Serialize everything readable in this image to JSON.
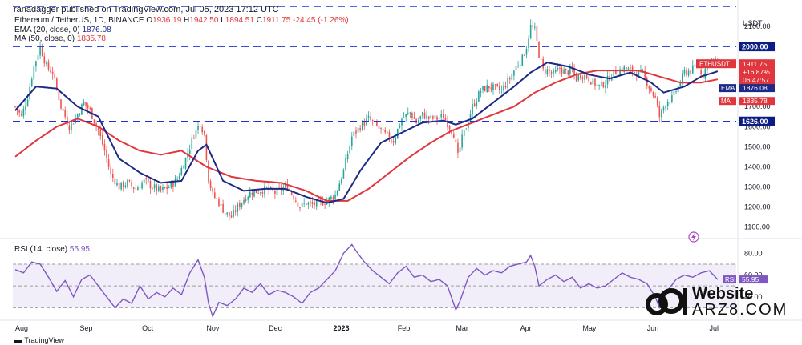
{
  "header": {
    "published": "ranadagger published on TradingView.com, Jul 05, 2023 17:12 UTC",
    "symbol": "Ethereum / TetherUS, 1D, BINANCE",
    "ohlc": {
      "o_label": "O",
      "o": "1936.19",
      "h_label": "H",
      "h": "1942.50",
      "l_label": "L",
      "l": "1894.51",
      "c_label": "C",
      "c": "1911.75",
      "change": "-24.45 (-1.26%)"
    },
    "ema_label": "EMA (20, close, 0)",
    "ema_value": "1876.08",
    "ma_label": "MA (50, close, 0)",
    "ma_value": "1835.78",
    "rsi_label": "RSI (14, close)",
    "rsi_value": "55.95"
  },
  "footer": {
    "brand": "TradingView"
  },
  "watermark": {
    "site": "Website",
    "url": "ARZ8.COM"
  },
  "colors": {
    "up": "#26a69a",
    "down": "#ef5350",
    "ema": "#1c2a85",
    "ma": "#e0373e",
    "level": "#1e32d6",
    "rsi": "#7e57c2",
    "rsi_band": "#ede7f6",
    "price_tag": "#e0373e"
  },
  "chart_data": [
    {
      "type": "candlestick",
      "title": "Ethereum / TetherUS, 1D, BINANCE",
      "y_unit": "USDT",
      "ylim": [
        1050,
        2200
      ],
      "y_ticks": [
        1100,
        1200,
        1300,
        1400,
        1500,
        1600,
        1700,
        1800,
        1900,
        2000,
        2100
      ],
      "y_tick_labels": [
        "1100.00",
        "1200.00",
        "1300.00",
        "1400.00",
        "1500.00",
        "1600.00",
        "1700.00",
        "1800.00",
        "1900.00",
        "2000.00",
        "2100.00"
      ],
      "x_tick_labels": [
        "Aug",
        "Sep",
        "Oct",
        "Nov",
        "Dec",
        "2023",
        "Feb",
        "Mar",
        "Apr",
        "May",
        "Jun",
        "Jul"
      ],
      "x_tick_days": [
        0,
        31,
        61,
        92,
        122,
        153,
        184,
        212,
        243,
        273,
        304,
        334
      ],
      "horizontal_levels": [
        {
          "value": 2200,
          "label": ""
        },
        {
          "value": 2000,
          "label": "2000.00"
        },
        {
          "value": 1626,
          "label": "1626.00"
        }
      ],
      "price_tags": [
        {
          "value": 1911.75,
          "lines": [
            "ETHUSDT",
            "1911.75",
            "+16.87%",
            "06:47:57"
          ]
        },
        {
          "value": 1876.08,
          "lines": [
            "EMA",
            "1876.08"
          ]
        },
        {
          "value": 1835.78,
          "lines": [
            "MA",
            "1835.78"
          ]
        }
      ],
      "close_anchors": [
        [
          0,
          1700
        ],
        [
          3,
          1650
        ],
        [
          6,
          1750
        ],
        [
          9,
          1900
        ],
        [
          12,
          2000
        ],
        [
          15,
          1900
        ],
        [
          18,
          1870
        ],
        [
          22,
          1700
        ],
        [
          26,
          1600
        ],
        [
          29,
          1640
        ],
        [
          33,
          1720
        ],
        [
          36,
          1680
        ],
        [
          40,
          1580
        ],
        [
          43,
          1480
        ],
        [
          46,
          1360
        ],
        [
          50,
          1300
        ],
        [
          54,
          1320
        ],
        [
          58,
          1290
        ],
        [
          62,
          1330
        ],
        [
          66,
          1300
        ],
        [
          70,
          1280
        ],
        [
          74,
          1300
        ],
        [
          78,
          1340
        ],
        [
          82,
          1440
        ],
        [
          86,
          1560
        ],
        [
          89,
          1620
        ],
        [
          91,
          1560
        ],
        [
          93,
          1340
        ],
        [
          95,
          1260
        ],
        [
          98,
          1220
        ],
        [
          101,
          1170
        ],
        [
          104,
          1150
        ],
        [
          107,
          1200
        ],
        [
          110,
          1240
        ],
        [
          113,
          1270
        ],
        [
          117,
          1280
        ],
        [
          121,
          1290
        ],
        [
          125,
          1270
        ],
        [
          128,
          1290
        ],
        [
          131,
          1300
        ],
        [
          134,
          1250
        ],
        [
          137,
          1200
        ],
        [
          140,
          1220
        ],
        [
          143,
          1210
        ],
        [
          146,
          1220
        ],
        [
          150,
          1230
        ],
        [
          154,
          1260
        ],
        [
          158,
          1380
        ],
        [
          162,
          1550
        ],
        [
          166,
          1600
        ],
        [
          170,
          1640
        ],
        [
          174,
          1600
        ],
        [
          178,
          1560
        ],
        [
          182,
          1530
        ],
        [
          186,
          1640
        ],
        [
          190,
          1670
        ],
        [
          193,
          1620
        ],
        [
          196,
          1660
        ],
        [
          199,
          1640
        ],
        [
          203,
          1640
        ],
        [
          206,
          1650
        ],
        [
          209,
          1600
        ],
        [
          211,
          1560
        ],
        [
          213,
          1450
        ],
        [
          215,
          1540
        ],
        [
          217,
          1600
        ],
        [
          220,
          1700
        ],
        [
          224,
          1780
        ],
        [
          228,
          1800
        ],
        [
          231,
          1790
        ],
        [
          234,
          1780
        ],
        [
          238,
          1840
        ],
        [
          241,
          1900
        ],
        [
          244,
          1940
        ],
        [
          246,
          2000
        ],
        [
          248,
          2100
        ],
        [
          250,
          2080
        ],
        [
          252,
          1960
        ],
        [
          254,
          1880
        ],
        [
          256,
          1880
        ],
        [
          259,
          1860
        ],
        [
          262,
          1890
        ],
        [
          265,
          1870
        ],
        [
          268,
          1880
        ],
        [
          270,
          1840
        ],
        [
          272,
          1860
        ],
        [
          275,
          1850
        ],
        [
          278,
          1820
        ],
        [
          281,
          1800
        ],
        [
          284,
          1820
        ],
        [
          287,
          1860
        ],
        [
          290,
          1880
        ],
        [
          293,
          1890
        ],
        [
          296,
          1880
        ],
        [
          299,
          1870
        ],
        [
          302,
          1860
        ],
        [
          305,
          1800
        ],
        [
          308,
          1740
        ],
        [
          310,
          1650
        ],
        [
          313,
          1720
        ],
        [
          316,
          1740
        ],
        [
          319,
          1800
        ],
        [
          322,
          1870
        ],
        [
          325,
          1880
        ],
        [
          328,
          1900
        ],
        [
          331,
          1860
        ],
        [
          334,
          1940
        ],
        [
          336,
          1930
        ],
        [
          338,
          1912
        ]
      ],
      "ema_anchors": [
        [
          0,
          1680
        ],
        [
          10,
          1800
        ],
        [
          20,
          1790
        ],
        [
          30,
          1700
        ],
        [
          40,
          1650
        ],
        [
          50,
          1440
        ],
        [
          60,
          1370
        ],
        [
          70,
          1320
        ],
        [
          80,
          1330
        ],
        [
          88,
          1480
        ],
        [
          92,
          1510
        ],
        [
          100,
          1330
        ],
        [
          110,
          1280
        ],
        [
          120,
          1290
        ],
        [
          130,
          1290
        ],
        [
          140,
          1250
        ],
        [
          150,
          1220
        ],
        [
          158,
          1240
        ],
        [
          166,
          1380
        ],
        [
          176,
          1520
        ],
        [
          186,
          1570
        ],
        [
          196,
          1620
        ],
        [
          206,
          1630
        ],
        [
          212,
          1610
        ],
        [
          220,
          1640
        ],
        [
          230,
          1720
        ],
        [
          240,
          1800
        ],
        [
          248,
          1870
        ],
        [
          256,
          1920
        ],
        [
          266,
          1900
        ],
        [
          276,
          1860
        ],
        [
          286,
          1840
        ],
        [
          296,
          1870
        ],
        [
          306,
          1820
        ],
        [
          312,
          1770
        ],
        [
          322,
          1800
        ],
        [
          330,
          1850
        ],
        [
          338,
          1876
        ]
      ],
      "ma_anchors": [
        [
          0,
          1450
        ],
        [
          10,
          1530
        ],
        [
          20,
          1600
        ],
        [
          30,
          1640
        ],
        [
          40,
          1600
        ],
        [
          50,
          1530
        ],
        [
          60,
          1480
        ],
        [
          70,
          1460
        ],
        [
          80,
          1480
        ],
        [
          92,
          1400
        ],
        [
          104,
          1350
        ],
        [
          116,
          1330
        ],
        [
          128,
          1320
        ],
        [
          140,
          1280
        ],
        [
          150,
          1230
        ],
        [
          160,
          1230
        ],
        [
          170,
          1290
        ],
        [
          180,
          1370
        ],
        [
          190,
          1450
        ],
        [
          200,
          1520
        ],
        [
          210,
          1580
        ],
        [
          220,
          1620
        ],
        [
          230,
          1660
        ],
        [
          240,
          1700
        ],
        [
          250,
          1770
        ],
        [
          260,
          1820
        ],
        [
          270,
          1860
        ],
        [
          280,
          1880
        ],
        [
          290,
          1880
        ],
        [
          300,
          1880
        ],
        [
          310,
          1850
        ],
        [
          320,
          1820
        ],
        [
          330,
          1820
        ],
        [
          338,
          1836
        ]
      ]
    },
    {
      "type": "line",
      "title": "RSI (14, close)",
      "ylim": [
        20,
        92
      ],
      "y_ticks": [
        40,
        60,
        80
      ],
      "y_tick_labels": [
        "40.00",
        "60.00",
        "80.00"
      ],
      "band": [
        30,
        70
      ],
      "midline": 50,
      "last_value": 55.95,
      "rsi_anchors": [
        [
          0,
          65
        ],
        [
          4,
          62
        ],
        [
          8,
          72
        ],
        [
          12,
          70
        ],
        [
          16,
          58
        ],
        [
          20,
          45
        ],
        [
          24,
          55
        ],
        [
          28,
          40
        ],
        [
          32,
          56
        ],
        [
          36,
          60
        ],
        [
          40,
          50
        ],
        [
          44,
          40
        ],
        [
          48,
          30
        ],
        [
          52,
          38
        ],
        [
          56,
          34
        ],
        [
          60,
          50
        ],
        [
          64,
          38
        ],
        [
          68,
          44
        ],
        [
          72,
          40
        ],
        [
          76,
          48
        ],
        [
          80,
          42
        ],
        [
          84,
          62
        ],
        [
          88,
          74
        ],
        [
          91,
          58
        ],
        [
          93,
          34
        ],
        [
          95,
          22
        ],
        [
          98,
          35
        ],
        [
          102,
          32
        ],
        [
          106,
          38
        ],
        [
          110,
          48
        ],
        [
          114,
          44
        ],
        [
          118,
          52
        ],
        [
          122,
          42
        ],
        [
          126,
          46
        ],
        [
          130,
          44
        ],
        [
          134,
          40
        ],
        [
          138,
          34
        ],
        [
          142,
          44
        ],
        [
          146,
          48
        ],
        [
          150,
          56
        ],
        [
          154,
          64
        ],
        [
          158,
          80
        ],
        [
          162,
          88
        ],
        [
          164,
          82
        ],
        [
          168,
          72
        ],
        [
          172,
          64
        ],
        [
          176,
          58
        ],
        [
          180,
          52
        ],
        [
          184,
          62
        ],
        [
          188,
          68
        ],
        [
          192,
          58
        ],
        [
          196,
          60
        ],
        [
          200,
          54
        ],
        [
          204,
          56
        ],
        [
          208,
          50
        ],
        [
          212,
          28
        ],
        [
          214,
          36
        ],
        [
          218,
          58
        ],
        [
          222,
          66
        ],
        [
          226,
          60
        ],
        [
          230,
          64
        ],
        [
          234,
          62
        ],
        [
          238,
          68
        ],
        [
          242,
          70
        ],
        [
          246,
          72
        ],
        [
          248,
          78
        ],
        [
          250,
          68
        ],
        [
          252,
          50
        ],
        [
          256,
          56
        ],
        [
          260,
          60
        ],
        [
          264,
          54
        ],
        [
          268,
          58
        ],
        [
          272,
          48
        ],
        [
          276,
          52
        ],
        [
          280,
          48
        ],
        [
          284,
          50
        ],
        [
          288,
          56
        ],
        [
          292,
          62
        ],
        [
          296,
          58
        ],
        [
          300,
          56
        ],
        [
          304,
          52
        ],
        [
          308,
          40
        ],
        [
          310,
          30
        ],
        [
          314,
          46
        ],
        [
          318,
          56
        ],
        [
          322,
          60
        ],
        [
          326,
          58
        ],
        [
          330,
          62
        ],
        [
          334,
          64
        ],
        [
          338,
          55.95
        ]
      ]
    }
  ]
}
